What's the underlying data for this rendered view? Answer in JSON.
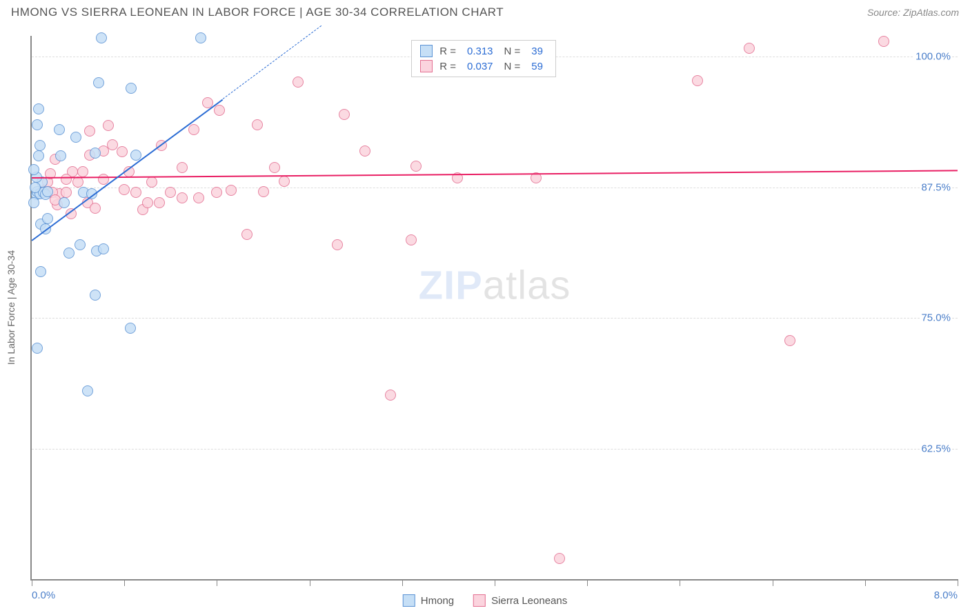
{
  "title": "HMONG VS SIERRA LEONEAN IN LABOR FORCE | AGE 30-34 CORRELATION CHART",
  "source_label": "Source: ZipAtlas.com",
  "y_axis_title": "In Labor Force | Age 30-34",
  "watermark": {
    "left": "ZIP",
    "right": "atlas"
  },
  "axes": {
    "xlim": [
      0.0,
      8.0
    ],
    "ylim": [
      50.0,
      102.0
    ],
    "x_label_min": "0.0%",
    "x_label_max": "8.0%",
    "xticks": [
      0.0,
      0.8,
      1.6,
      2.4,
      3.2,
      4.0,
      4.8,
      5.6,
      6.4,
      7.2,
      8.0
    ],
    "yticks": [
      {
        "v": 62.5,
        "label": "62.5%"
      },
      {
        "v": 75.0,
        "label": "75.0%"
      },
      {
        "v": 87.5,
        "label": "87.5%"
      },
      {
        "v": 100.0,
        "label": "100.0%"
      }
    ]
  },
  "series": {
    "hmong": {
      "label": "Hmong",
      "fill": "#c6dff6",
      "stroke": "#5b92d4",
      "trend_color": "#2b6cd4",
      "marker_radius": 8,
      "R": "0.313",
      "N": "39",
      "trend": {
        "x1": 0.0,
        "y1": 82.5,
        "x2": 1.65,
        "y2": 96.0,
        "dash_to_x": 2.5,
        "dash_to_y": 103.0
      },
      "points": [
        {
          "x": 0.6,
          "y": 101.8
        },
        {
          "x": 1.46,
          "y": 101.8
        },
        {
          "x": 0.05,
          "y": 93.5
        },
        {
          "x": 0.58,
          "y": 97.5
        },
        {
          "x": 0.86,
          "y": 97.0
        },
        {
          "x": 0.09,
          "y": 88.0
        },
        {
          "x": 0.04,
          "y": 86.8
        },
        {
          "x": 0.05,
          "y": 87.1
        },
        {
          "x": 0.07,
          "y": 86.9
        },
        {
          "x": 0.1,
          "y": 87.0
        },
        {
          "x": 0.12,
          "y": 86.8
        },
        {
          "x": 0.14,
          "y": 87.1
        },
        {
          "x": 0.08,
          "y": 84.0
        },
        {
          "x": 0.12,
          "y": 83.5
        },
        {
          "x": 0.25,
          "y": 90.5
        },
        {
          "x": 0.38,
          "y": 92.3
        },
        {
          "x": 0.32,
          "y": 81.2
        },
        {
          "x": 0.42,
          "y": 82.0
        },
        {
          "x": 0.56,
          "y": 81.4
        },
        {
          "x": 0.62,
          "y": 81.6
        },
        {
          "x": 0.45,
          "y": 87.0
        },
        {
          "x": 0.52,
          "y": 86.9
        },
        {
          "x": 0.08,
          "y": 79.4
        },
        {
          "x": 0.55,
          "y": 77.2
        },
        {
          "x": 0.85,
          "y": 74.0
        },
        {
          "x": 0.05,
          "y": 72.1
        },
        {
          "x": 0.48,
          "y": 68.0
        },
        {
          "x": 0.07,
          "y": 91.5
        },
        {
          "x": 0.9,
          "y": 90.6
        },
        {
          "x": 0.55,
          "y": 90.8
        },
        {
          "x": 0.28,
          "y": 86.0
        },
        {
          "x": 0.04,
          "y": 88.5
        },
        {
          "x": 0.02,
          "y": 89.2
        },
        {
          "x": 0.03,
          "y": 87.5
        },
        {
          "x": 0.02,
          "y": 86.0
        },
        {
          "x": 0.24,
          "y": 93.0
        },
        {
          "x": 0.14,
          "y": 84.5
        },
        {
          "x": 0.06,
          "y": 90.5
        },
        {
          "x": 0.06,
          "y": 95.0
        }
      ]
    },
    "sierra": {
      "label": "Sierra Leoneans",
      "fill": "#fbd4de",
      "stroke": "#e36f91",
      "trend_color": "#e91e63",
      "marker_radius": 8,
      "R": "0.037",
      "N": "59",
      "trend": {
        "x1": 0.0,
        "y1": 88.5,
        "x2": 8.0,
        "y2": 89.2
      },
      "points": [
        {
          "x": 7.36,
          "y": 101.5
        },
        {
          "x": 6.2,
          "y": 100.8
        },
        {
          "x": 5.75,
          "y": 97.7
        },
        {
          "x": 6.55,
          "y": 72.8
        },
        {
          "x": 4.56,
          "y": 52.0
        },
        {
          "x": 4.36,
          "y": 88.4
        },
        {
          "x": 3.68,
          "y": 88.4
        },
        {
          "x": 3.28,
          "y": 82.5
        },
        {
          "x": 3.1,
          "y": 67.6
        },
        {
          "x": 2.88,
          "y": 91.0
        },
        {
          "x": 3.32,
          "y": 89.5
        },
        {
          "x": 2.7,
          "y": 94.5
        },
        {
          "x": 2.3,
          "y": 97.6
        },
        {
          "x": 2.64,
          "y": 82.0
        },
        {
          "x": 2.18,
          "y": 88.1
        },
        {
          "x": 1.86,
          "y": 83.0
        },
        {
          "x": 2.0,
          "y": 87.1
        },
        {
          "x": 2.1,
          "y": 89.4
        },
        {
          "x": 1.52,
          "y": 95.6
        },
        {
          "x": 1.62,
          "y": 94.9
        },
        {
          "x": 1.6,
          "y": 87.0
        },
        {
          "x": 1.72,
          "y": 87.2
        },
        {
          "x": 1.44,
          "y": 86.5
        },
        {
          "x": 1.4,
          "y": 93.0
        },
        {
          "x": 1.2,
          "y": 87.0
        },
        {
          "x": 1.3,
          "y": 86.5
        },
        {
          "x": 1.1,
          "y": 86.0
        },
        {
          "x": 1.04,
          "y": 88.0
        },
        {
          "x": 0.96,
          "y": 85.4
        },
        {
          "x": 0.8,
          "y": 87.3
        },
        {
          "x": 0.7,
          "y": 91.6
        },
        {
          "x": 0.62,
          "y": 91.0
        },
        {
          "x": 0.5,
          "y": 92.9
        },
        {
          "x": 0.66,
          "y": 93.4
        },
        {
          "x": 0.78,
          "y": 90.9
        },
        {
          "x": 0.35,
          "y": 89.0
        },
        {
          "x": 0.48,
          "y": 86.0
        },
        {
          "x": 0.55,
          "y": 85.5
        },
        {
          "x": 0.3,
          "y": 88.3
        },
        {
          "x": 0.24,
          "y": 86.9
        },
        {
          "x": 0.2,
          "y": 90.2
        },
        {
          "x": 0.12,
          "y": 87.3
        },
        {
          "x": 0.14,
          "y": 88.0
        },
        {
          "x": 0.18,
          "y": 87.0
        },
        {
          "x": 0.3,
          "y": 87.0
        },
        {
          "x": 0.4,
          "y": 88.0
        },
        {
          "x": 0.44,
          "y": 89.0
        },
        {
          "x": 0.5,
          "y": 90.6
        },
        {
          "x": 0.84,
          "y": 89.0
        },
        {
          "x": 0.9,
          "y": 87.0
        },
        {
          "x": 0.34,
          "y": 85.0
        },
        {
          "x": 0.22,
          "y": 85.8
        },
        {
          "x": 0.2,
          "y": 86.3
        },
        {
          "x": 1.0,
          "y": 86.0
        },
        {
          "x": 1.95,
          "y": 93.5
        },
        {
          "x": 1.12,
          "y": 91.5
        },
        {
          "x": 0.16,
          "y": 88.8
        },
        {
          "x": 0.62,
          "y": 88.3
        },
        {
          "x": 1.3,
          "y": 89.4
        }
      ]
    }
  },
  "legend_box": {
    "rows": [
      {
        "swatch": "hmong",
        "r_label": "R =",
        "r_val": "0.313",
        "n_label": "N =",
        "n_val": "39"
      },
      {
        "swatch": "sierra",
        "r_label": "R =",
        "r_val": "0.037",
        "n_label": "N =",
        "n_val": "59"
      }
    ]
  }
}
